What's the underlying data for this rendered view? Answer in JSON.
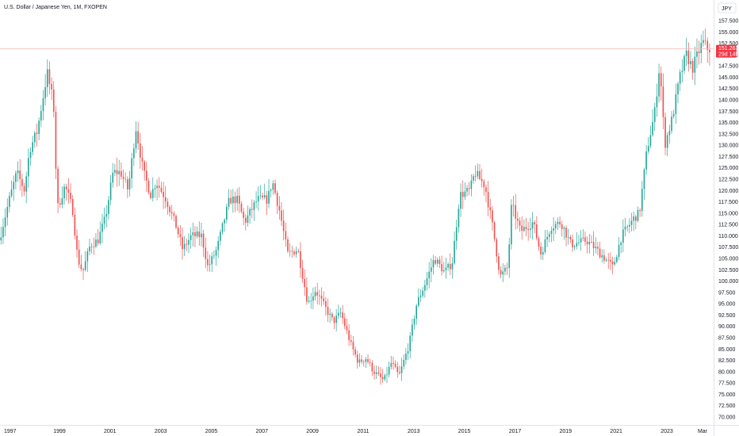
{
  "header": {
    "symbol_title": "U.S. Dollar / Japanese Yen, 1M, FXOPEN"
  },
  "currency": "JPY",
  "price_tag": {
    "price": "151.263",
    "countdown": "29d 14h"
  },
  "colors": {
    "up": "#26a69a",
    "down": "#ef5350",
    "price_line": "#f7b7b7",
    "price_tag_bg": "#f23645",
    "axis_border": "#e0e3eb"
  },
  "chart_data": {
    "type": "candlestick",
    "title": "U.S. Dollar / Japanese Yen, 1M, FXOPEN",
    "timeframe": "1M",
    "x_tick_labels": [
      "1997",
      "1999",
      "2001",
      "2003",
      "2005",
      "2007",
      "2009",
      "2011",
      "2013",
      "2015",
      "2017",
      "2019",
      "2021",
      "2023",
      "Mar"
    ],
    "y_tick_labels": [
      "70.000",
      "72.500",
      "75.000",
      "77.500",
      "80.000",
      "82.500",
      "85.000",
      "87.500",
      "90.000",
      "92.500",
      "95.000",
      "97.500",
      "100.000",
      "102.500",
      "105.000",
      "107.500",
      "110.000",
      "112.500",
      "115.000",
      "117.500",
      "120.000",
      "122.500",
      "125.000",
      "127.500",
      "130.000",
      "132.500",
      "135.000",
      "137.500",
      "140.000",
      "142.500",
      "145.000",
      "147.500",
      "150.000",
      "152.500",
      "155.000",
      "157.500"
    ],
    "ylim": [
      70,
      158
    ],
    "xlim": [
      1996.65,
      2024.85
    ],
    "last_price": 151.263,
    "grid": false,
    "anchors": [
      [
        1996.7,
        109
      ],
      [
        1997.1,
        118
      ],
      [
        1997.4,
        124
      ],
      [
        1997.7,
        120
      ],
      [
        1997.9,
        129
      ],
      [
        1998.2,
        133
      ],
      [
        1998.6,
        146
      ],
      [
        1998.85,
        139
      ],
      [
        1999.0,
        116
      ],
      [
        1999.3,
        121
      ],
      [
        1999.6,
        116
      ],
      [
        1999.8,
        105
      ],
      [
        2000.0,
        102
      ],
      [
        2000.3,
        108
      ],
      [
        2000.6,
        109
      ],
      [
        2000.9,
        114
      ],
      [
        2001.2,
        124
      ],
      [
        2001.5,
        124
      ],
      [
        2001.8,
        120
      ],
      [
        2002.1,
        134
      ],
      [
        2002.4,
        124
      ],
      [
        2002.7,
        119
      ],
      [
        2002.9,
        122
      ],
      [
        2003.3,
        118
      ],
      [
        2003.7,
        112
      ],
      [
        2003.95,
        107
      ],
      [
        2004.3,
        110
      ],
      [
        2004.7,
        110
      ],
      [
        2004.95,
        103
      ],
      [
        2005.3,
        107
      ],
      [
        2005.8,
        118
      ],
      [
        2006.1,
        118
      ],
      [
        2006.4,
        113
      ],
      [
        2006.9,
        118
      ],
      [
        2007.3,
        118
      ],
      [
        2007.5,
        122
      ],
      [
        2007.8,
        115
      ],
      [
        2008.1,
        106
      ],
      [
        2008.5,
        107
      ],
      [
        2008.9,
        95
      ],
      [
        2009.2,
        98
      ],
      [
        2009.5,
        95
      ],
      [
        2009.9,
        91
      ],
      [
        2010.2,
        93
      ],
      [
        2010.6,
        86
      ],
      [
        2010.9,
        82
      ],
      [
        2011.2,
        83
      ],
      [
        2011.5,
        80
      ],
      [
        2011.9,
        78
      ],
      [
        2012.2,
        82
      ],
      [
        2012.5,
        79
      ],
      [
        2012.9,
        86
      ],
      [
        2013.2,
        95
      ],
      [
        2013.5,
        99
      ],
      [
        2013.9,
        105
      ],
      [
        2014.3,
        102
      ],
      [
        2014.6,
        104
      ],
      [
        2014.9,
        119
      ],
      [
        2015.3,
        120
      ],
      [
        2015.5,
        124
      ],
      [
        2015.9,
        121
      ],
      [
        2016.2,
        112
      ],
      [
        2016.5,
        101
      ],
      [
        2016.8,
        103
      ],
      [
        2016.95,
        117
      ],
      [
        2017.3,
        111
      ],
      [
        2017.8,
        113
      ],
      [
        2018.1,
        106
      ],
      [
        2018.5,
        112
      ],
      [
        2018.9,
        113
      ],
      [
        2019.3,
        108
      ],
      [
        2019.9,
        109
      ],
      [
        2020.3,
        107
      ],
      [
        2020.8,
        104
      ],
      [
        2020.95,
        103
      ],
      [
        2021.3,
        110
      ],
      [
        2021.8,
        114
      ],
      [
        2022.0,
        115
      ],
      [
        2022.3,
        129
      ],
      [
        2022.6,
        137
      ],
      [
        2022.8,
        148
      ],
      [
        2023.0,
        130
      ],
      [
        2023.3,
        136
      ],
      [
        2023.6,
        145
      ],
      [
        2023.85,
        150
      ],
      [
        2024.1,
        147
      ],
      [
        2024.3,
        150
      ],
      [
        2024.5,
        152.8
      ],
      [
        2024.7,
        151.3
      ]
    ]
  }
}
